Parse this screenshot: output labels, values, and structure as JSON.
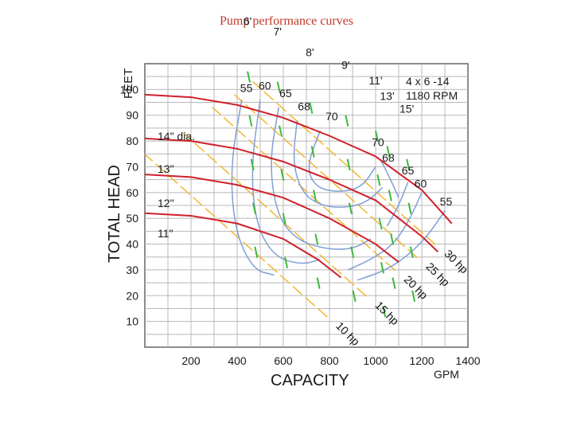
{
  "slide": {
    "title": "Pump performance curves"
  },
  "chart_data": {
    "type": "line",
    "title": "",
    "pump": "4 x 6 -14",
    "speed": "1180 RPM",
    "xlabel": "CAPACITY",
    "xunit": "GPM",
    "ylabel": "TOTAL HEAD",
    "yunit": "FEET",
    "xlim": [
      0,
      1400
    ],
    "ylim": [
      0,
      110
    ],
    "grid": true,
    "x_ticks": [
      200,
      400,
      600,
      800,
      1000,
      1200,
      1400
    ],
    "y_ticks": [
      10,
      20,
      30,
      40,
      50,
      60,
      70,
      80,
      90,
      100
    ],
    "head_curves": [
      {
        "name": "14\" dia.",
        "color": "#d0202a",
        "points": [
          [
            0,
            98
          ],
          [
            200,
            97
          ],
          [
            400,
            94
          ],
          [
            600,
            89
          ],
          [
            800,
            82
          ],
          [
            1000,
            74
          ],
          [
            1200,
            61
          ],
          [
            1330,
            48
          ]
        ]
      },
      {
        "name": "13\"",
        "color": "#d0202a",
        "points": [
          [
            0,
            81
          ],
          [
            200,
            80
          ],
          [
            400,
            77
          ],
          [
            600,
            72
          ],
          [
            800,
            65
          ],
          [
            1000,
            57
          ],
          [
            1200,
            43
          ],
          [
            1270,
            37
          ]
        ]
      },
      {
        "name": "12\"",
        "color": "#d0202a",
        "points": [
          [
            0,
            67
          ],
          [
            200,
            66
          ],
          [
            400,
            63
          ],
          [
            600,
            58
          ],
          [
            800,
            50
          ],
          [
            1000,
            40
          ],
          [
            1100,
            33
          ]
        ]
      },
      {
        "name": "11\"",
        "color": "#d0202a",
        "points": [
          [
            0,
            52
          ],
          [
            200,
            51
          ],
          [
            400,
            48
          ],
          [
            600,
            42
          ],
          [
            750,
            34
          ],
          [
            850,
            27
          ]
        ]
      }
    ],
    "efficiency_labels": [
      {
        "text": "55",
        "x": 440,
        "y": 99
      },
      {
        "text": "60",
        "x": 520,
        "y": 100
      },
      {
        "text": "65",
        "x": 610,
        "y": 97
      },
      {
        "text": "68",
        "x": 690,
        "y": 92
      },
      {
        "text": "70",
        "x": 810,
        "y": 88
      },
      {
        "text": "70",
        "x": 1010,
        "y": 78
      },
      {
        "text": "68",
        "x": 1055,
        "y": 72
      },
      {
        "text": "65",
        "x": 1140,
        "y": 67
      },
      {
        "text": "60",
        "x": 1195,
        "y": 62
      },
      {
        "text": "55",
        "x": 1305,
        "y": 55
      }
    ],
    "npsh_labels": [
      {
        "text": "6'",
        "x": 445,
        "y": 125
      },
      {
        "text": "7'",
        "x": 575,
        "y": 121
      },
      {
        "text": "8'",
        "x": 715,
        "y": 113
      },
      {
        "text": "9'",
        "x": 870,
        "y": 108
      },
      {
        "text": "11'",
        "x": 1000,
        "y": 102
      },
      {
        "text": "13'",
        "x": 1050,
        "y": 96
      },
      {
        "text": "15'",
        "x": 1135,
        "y": 91
      }
    ],
    "hp_labels": [
      {
        "text": "30 hp",
        "x": 1295,
        "y": 36,
        "rot": 45
      },
      {
        "text": "25 hp",
        "x": 1215,
        "y": 31,
        "rot": 45
      },
      {
        "text": "20 hp",
        "x": 1120,
        "y": 26,
        "rot": 45
      },
      {
        "text": "15 hp",
        "x": 995,
        "y": 16,
        "rot": 45
      },
      {
        "text": "10 hp",
        "x": 825,
        "y": 8,
        "rot": 45
      }
    ]
  }
}
